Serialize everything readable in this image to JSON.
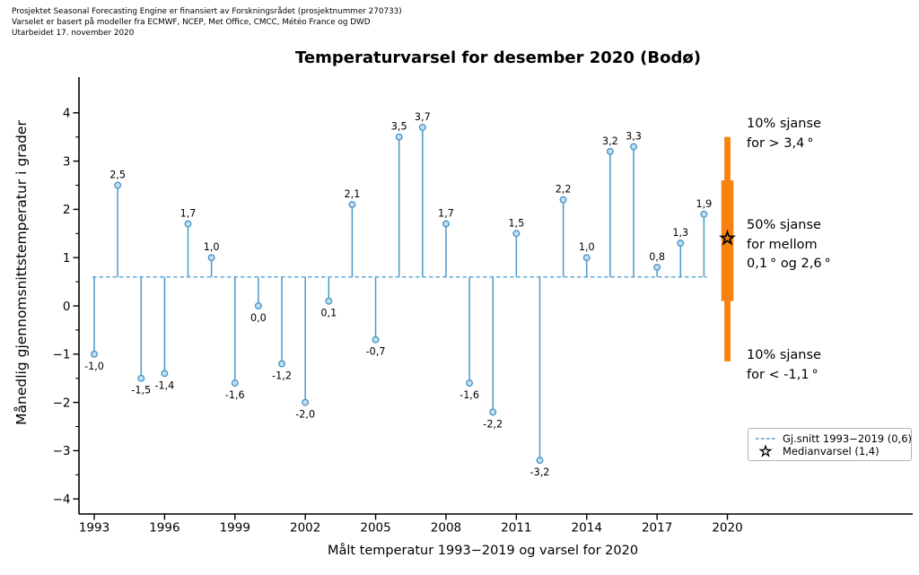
{
  "header": {
    "line1": "Prosjektet Seasonal Forecasting Engine er finansiert av Forskningsrådet (prosjektnummer 270733)",
    "line2": "Varselet er basert på modeller fra ECMWF, NCEP, Met Office, CMCC, Météo France og DWD",
    "line3": "Utarbeidet 17. november 2020"
  },
  "chart_data": {
    "type": "stem",
    "title": "Temperaturvarsel for desember 2020 (Bodø)",
    "xlabel": "Målt temperatur 1993−2019 og varsel for 2020",
    "ylabel": "Månedlig gjennomsnittstemperatur i grader",
    "years": [
      1993,
      1994,
      1995,
      1996,
      1997,
      1998,
      1999,
      2000,
      2001,
      2002,
      2003,
      2004,
      2005,
      2006,
      2007,
      2008,
      2009,
      2010,
      2011,
      2012,
      2013,
      2014,
      2015,
      2016,
      2017,
      2018,
      2019
    ],
    "values": [
      -1.0,
      2.5,
      -1.5,
      -1.4,
      1.7,
      1.0,
      -1.6,
      0.0,
      -1.2,
      -2.0,
      0.1,
      2.1,
      -0.7,
      3.5,
      3.7,
      1.7,
      -1.6,
      -2.2,
      1.5,
      -3.2,
      2.2,
      1.0,
      3.2,
      3.3,
      0.8,
      1.3,
      1.9
    ],
    "value_labels": [
      "-1,0",
      "2,5",
      "-1,5",
      "-1,4",
      "1,7",
      "1,0",
      "-1,6",
      "0,0",
      "-1,2",
      "-2,0",
      "0,1",
      "2,1",
      "-0,7",
      "3,5",
      "3,7",
      "1,7",
      "-1,6",
      "-2,2",
      "1,5",
      "-3,2",
      "2,2",
      "1,0",
      "3,2",
      "3,3",
      "0,8",
      "1,3",
      "1,9"
    ],
    "baseline_mean": 0.6,
    "xticks": [
      1993,
      1996,
      1999,
      2002,
      2005,
      2008,
      2011,
      2014,
      2017,
      2020
    ],
    "ytick_values": [
      -4,
      -3,
      -2,
      -1,
      0,
      1,
      2,
      3,
      4
    ],
    "ytick_labels": [
      "−4",
      "−3",
      "−2",
      "−1",
      "0",
      "1",
      "2",
      "3",
      "4"
    ],
    "ylim": [
      -4.3,
      4.7
    ],
    "grid": false,
    "forecast": {
      "year": 2020,
      "median": 1.4,
      "band50": [
        0.1,
        2.6
      ],
      "band_outer": [
        -1.15,
        3.5
      ],
      "threshold_high": 3.4,
      "threshold_low": -1.1,
      "annotations": [
        {
          "text": "10% sjanse\nfor > 3,4 °"
        },
        {
          "text": "50% sjanse\nfor mellom\n0,1 ° og 2,6 °"
        },
        {
          "text": "10% sjanse\nfor < -1,1 °"
        }
      ]
    },
    "legend": {
      "position": "lower right",
      "mean_label": "Gj.snitt 1993−2019 (0,6)",
      "median_label": "Medianvarsel (1,4)"
    },
    "colors": {
      "stem": "#4a98cb",
      "marker_fill": "#c7def0",
      "forecast_bar": "#f8820f",
      "text": "#000000",
      "legend_border": "#b3b3b3"
    }
  }
}
